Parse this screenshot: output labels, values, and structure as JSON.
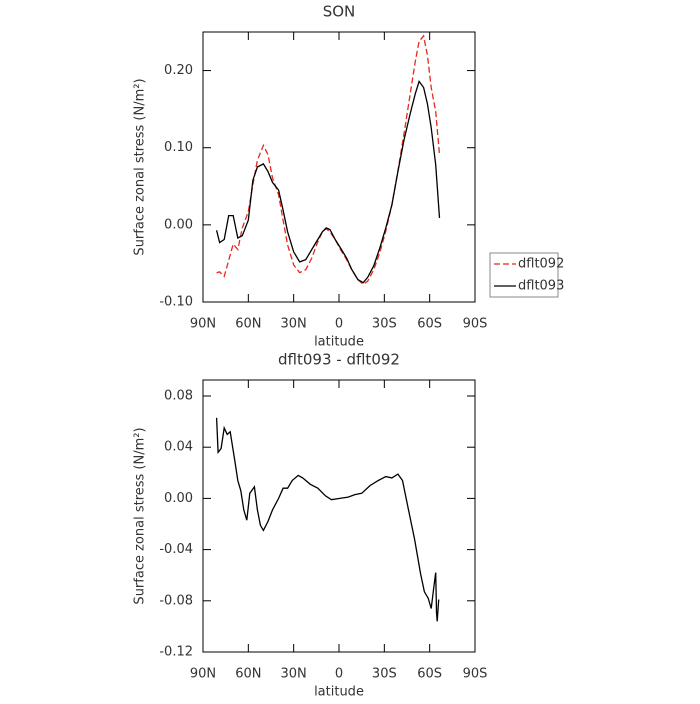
{
  "chart_data": [
    {
      "type": "line",
      "title": "SON",
      "xlabel": "latitude",
      "ylabel": "Surface zonal stress (N/m²)",
      "x": [
        81,
        79,
        76,
        73,
        70,
        67,
        64,
        60,
        57,
        54,
        50,
        47,
        44,
        40,
        37,
        34,
        30,
        26,
        22,
        18,
        14,
        11,
        8.5,
        6,
        2.5,
        -1,
        -5,
        -8.5,
        -12.5,
        -16,
        -19,
        -23,
        -27,
        -31,
        -35,
        -39,
        -43,
        -47,
        -50.5,
        -53,
        -56,
        -58.5,
        -61,
        -64,
        -66.5
      ],
      "xlim": [
        90,
        -90
      ],
      "xticks": [
        {
          "value": 90,
          "label": "90N"
        },
        {
          "value": 60,
          "label": "60N"
        },
        {
          "value": 30,
          "label": "30N"
        },
        0,
        {
          "value": -30,
          "label": "30S"
        },
        {
          "value": -60,
          "label": "60S"
        },
        {
          "value": -90,
          "label": "90S"
        }
      ],
      "ylim": [
        -0.1,
        0.25
      ],
      "yticks": [
        {
          "value": -0.1,
          "label": "-0.10"
        },
        {
          "value": 0,
          "label": "0.00"
        },
        {
          "value": 0.1,
          "label": "0.10"
        },
        {
          "value": 0.2,
          "label": "0.20"
        }
      ],
      "legend": "right",
      "series": [
        {
          "name": "dflt092",
          "color": "#e8261c",
          "linestyle": "dashed",
          "values": [
            -0.062,
            -0.061,
            -0.067,
            -0.046,
            -0.025,
            -0.032,
            -0.004,
            0.017,
            0.052,
            0.084,
            0.103,
            0.091,
            0.061,
            0.039,
            0.006,
            -0.026,
            -0.052,
            -0.062,
            -0.058,
            -0.043,
            -0.022,
            -0.009,
            -0.005,
            -0.009,
            -0.019,
            -0.032,
            -0.045,
            -0.058,
            -0.071,
            -0.077,
            -0.073,
            -0.058,
            -0.036,
            -0.008,
            0.026,
            0.07,
            0.118,
            0.168,
            0.212,
            0.238,
            0.245,
            0.22,
            0.178,
            0.147,
            0.091
          ]
        },
        {
          "name": "dflt093",
          "color": "#000000",
          "linestyle": "solid",
          "values": [
            -0.007,
            -0.023,
            -0.019,
            0.012,
            0.012,
            -0.017,
            -0.014,
            0.006,
            0.058,
            0.075,
            0.079,
            0.069,
            0.055,
            0.045,
            0.019,
            -0.009,
            -0.035,
            -0.048,
            -0.045,
            -0.032,
            -0.019,
            -0.009,
            -0.004,
            -0.006,
            -0.019,
            -0.03,
            -0.043,
            -0.058,
            -0.071,
            -0.075,
            -0.068,
            -0.053,
            -0.03,
            -0.004,
            0.026,
            0.069,
            0.11,
            0.143,
            0.17,
            0.186,
            0.178,
            0.157,
            0.126,
            0.078,
            0.009
          ]
        }
      ]
    },
    {
      "type": "line",
      "title": "dflt093 - dflt092",
      "xlabel": "latitude",
      "ylabel": "Surface zonal stress (N/m²)",
      "x": [
        81,
        80,
        78,
        76,
        74,
        72,
        69,
        67,
        65,
        63,
        61,
        59,
        56,
        54,
        52,
        50,
        47,
        44,
        40,
        37,
        34,
        31,
        27,
        24,
        19,
        14,
        9,
        5,
        -0.5,
        -6,
        -10.5,
        -15,
        -20.5,
        -26,
        -31,
        -35,
        -39,
        -42,
        -46,
        -50,
        -54,
        -56.5,
        -59,
        -61,
        -62.5,
        -64,
        -64.5,
        -65,
        -66
      ],
      "xlim": [
        90,
        -90
      ],
      "xticks": [
        {
          "value": 90,
          "label": "90N"
        },
        {
          "value": 60,
          "label": "60N"
        },
        {
          "value": 30,
          "label": "30N"
        },
        0,
        {
          "value": -30,
          "label": "30S"
        },
        {
          "value": -60,
          "label": "60S"
        },
        {
          "value": -90,
          "label": "90S"
        }
      ],
      "ylim": [
        -0.12,
        0.0925
      ],
      "yticks": [
        {
          "value": -0.12,
          "label": "-0.12"
        },
        {
          "value": -0.08,
          "label": "-0.08"
        },
        {
          "value": -0.04,
          "label": "-0.04"
        },
        {
          "value": 0,
          "label": "0.00"
        },
        {
          "value": 0.04,
          "label": "0.04"
        },
        {
          "value": 0.08,
          "label": "0.08"
        }
      ],
      "series": [
        {
          "color": "#000000",
          "linestyle": "solid",
          "values": [
            0.063,
            0.036,
            0.039,
            0.055,
            0.05,
            0.052,
            0.03,
            0.014,
            0.006,
            -0.009,
            -0.017,
            0.004,
            0.009,
            -0.009,
            -0.021,
            -0.025,
            -0.018,
            -0.009,
            0.0,
            0.008,
            0.008,
            0.014,
            0.018,
            0.016,
            0.011,
            0.008,
            0.002,
            -0.001,
            0.0,
            0.001,
            0.003,
            0.004,
            0.01,
            0.014,
            0.017,
            0.016,
            0.019,
            0.014,
            -0.009,
            -0.032,
            -0.059,
            -0.073,
            -0.078,
            -0.086,
            -0.072,
            -0.058,
            -0.089,
            -0.096,
            -0.079
          ]
        }
      ]
    }
  ]
}
